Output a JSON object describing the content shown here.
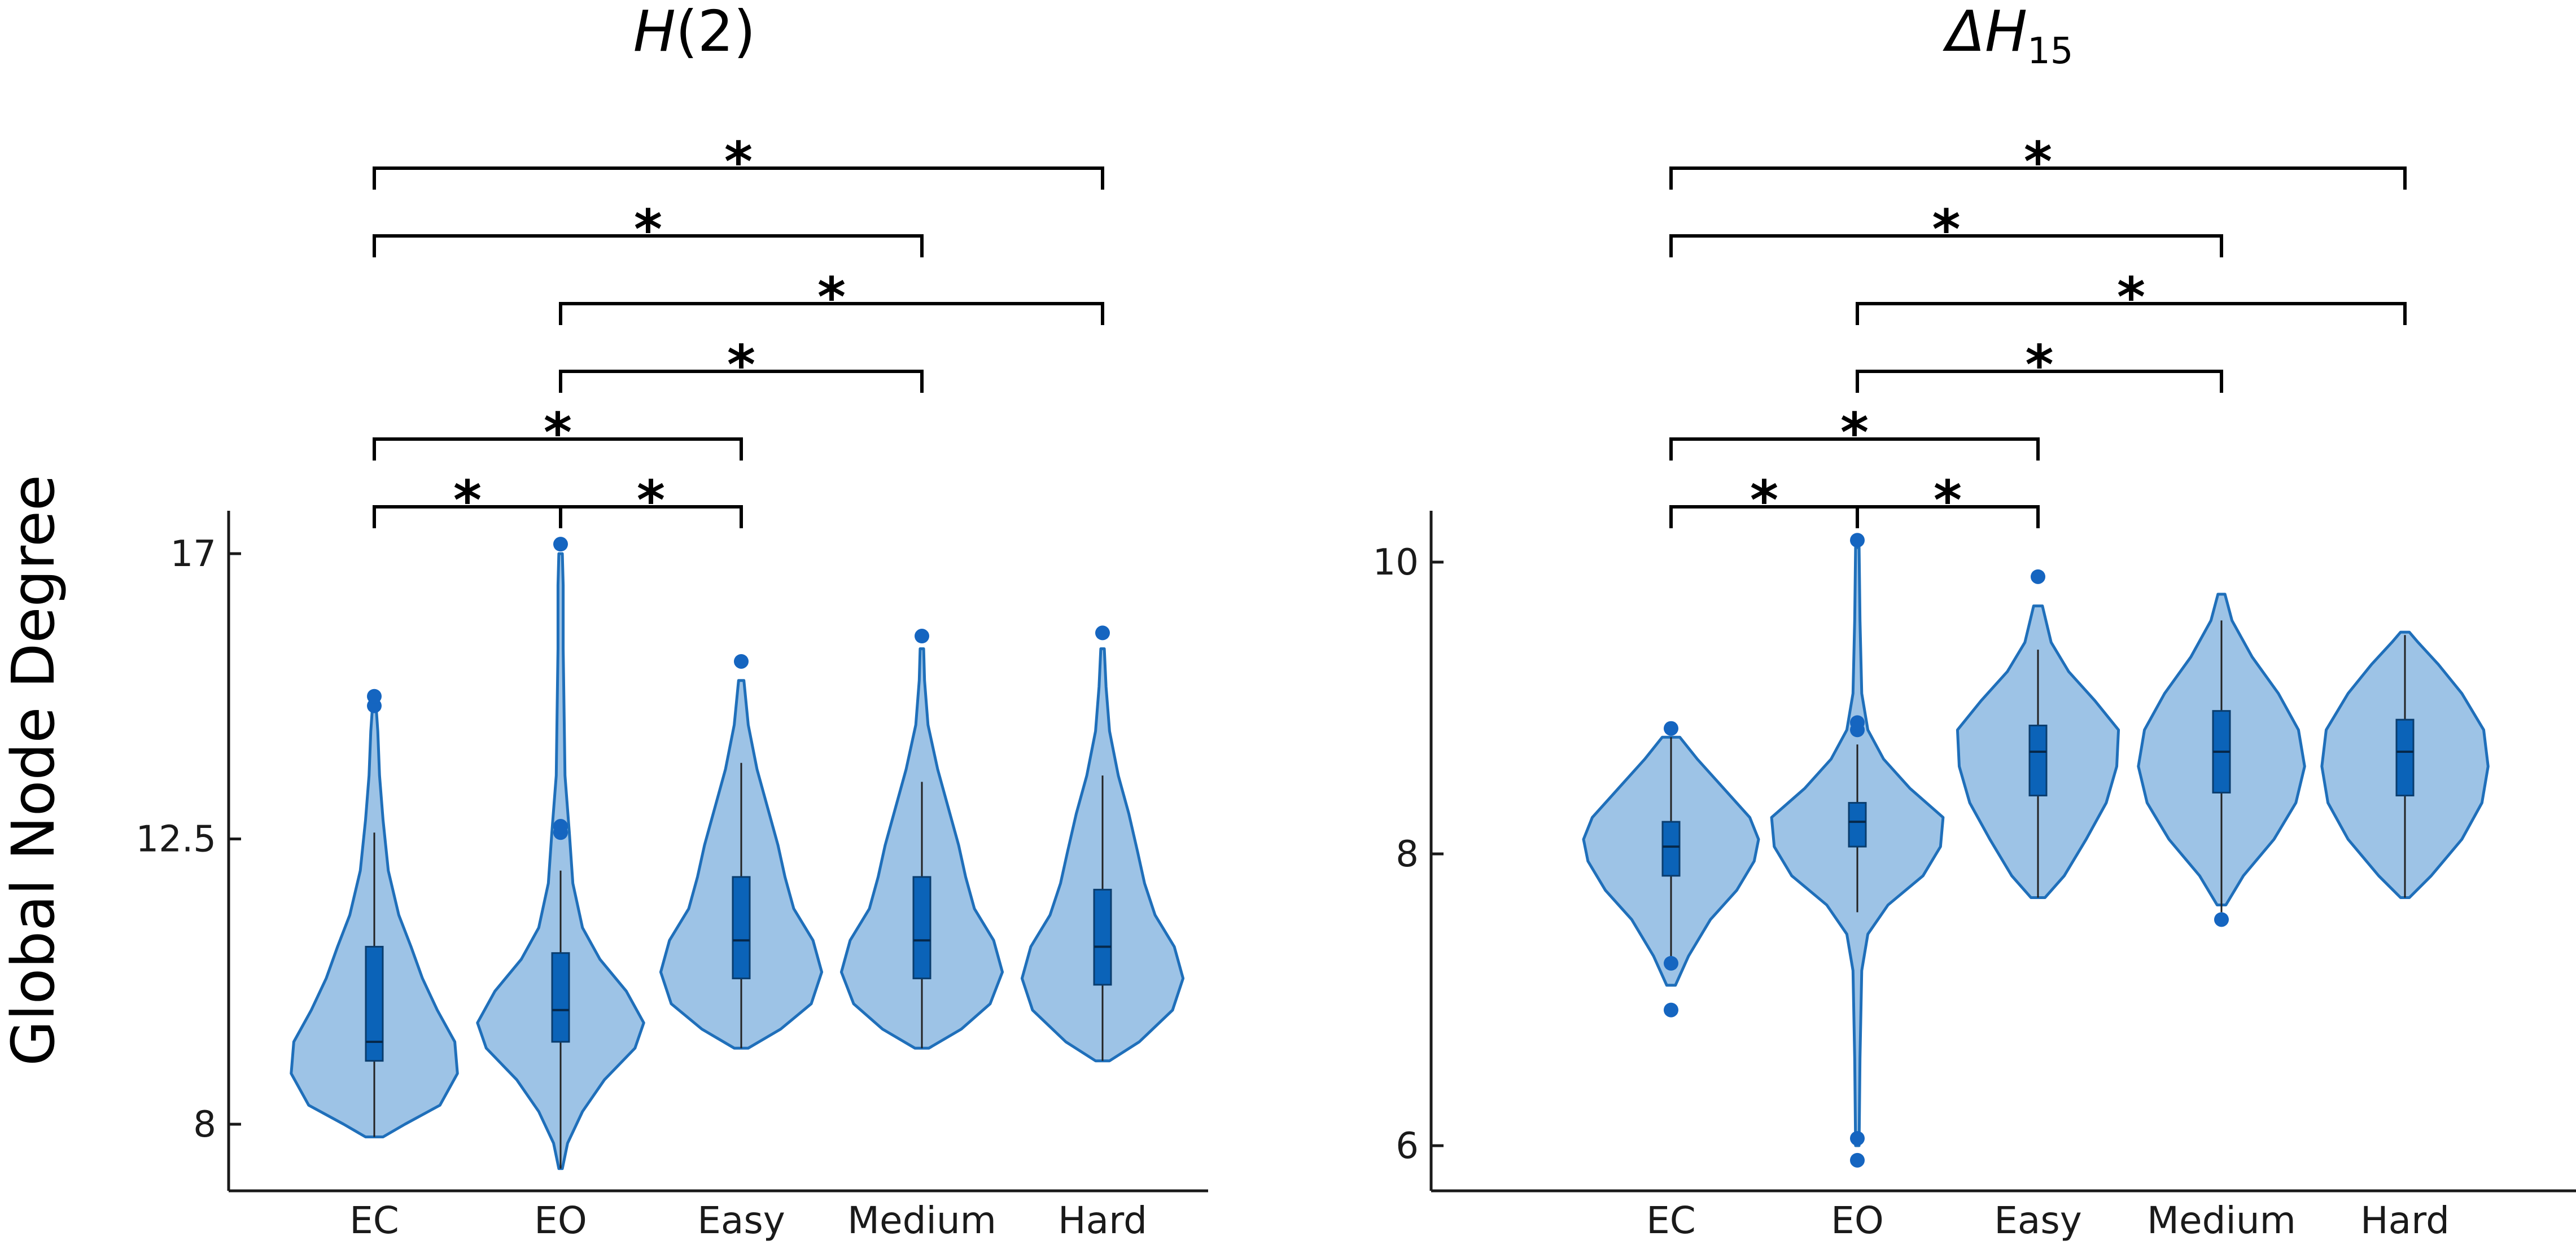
{
  "figure": {
    "ylabel": "Global Node Degree"
  },
  "colors": {
    "violin_fill": "#9dc3e6",
    "violin_edge": "#1f6fba",
    "box_fill": "#0b63b8",
    "outlier": "#1565c0",
    "axis": "#1a1a1a"
  },
  "chart_data": [
    {
      "type": "violin",
      "title": "H(2)",
      "title_main": "H",
      "title_suffix": "(2)",
      "ylabel": "Global Node Degree",
      "ylim": [
        7.0,
        17.6
      ],
      "yticks": [
        8,
        12.5,
        17
      ],
      "ytick_labels": [
        "8",
        "12.5",
        "17"
      ],
      "categories": [
        "EC",
        "EO",
        "Easy",
        "Medium",
        "Hard"
      ],
      "series": [
        {
          "name": "EC",
          "min": 7.8,
          "q1": 9.0,
          "median": 9.3,
          "q3": 10.8,
          "max": 14.8,
          "whisker_low": 7.8,
          "whisker_high": 12.6,
          "outliers": [
            14.6,
            14.75
          ],
          "kde": [
            [
              7.8,
              0.1
            ],
            [
              8.0,
              0.35
            ],
            [
              8.3,
              0.75
            ],
            [
              8.8,
              0.95
            ],
            [
              9.3,
              0.92
            ],
            [
              9.8,
              0.72
            ],
            [
              10.3,
              0.55
            ],
            [
              10.8,
              0.42
            ],
            [
              11.3,
              0.28
            ],
            [
              12.0,
              0.16
            ],
            [
              12.8,
              0.1
            ],
            [
              13.5,
              0.06
            ],
            [
              14.2,
              0.04
            ],
            [
              14.6,
              0.02
            ]
          ]
        },
        {
          "name": "EO",
          "min": 7.3,
          "q1": 9.3,
          "median": 9.8,
          "q3": 10.7,
          "max": 17.2,
          "whisker_low": 7.3,
          "whisker_high": 12.0,
          "outliers": [
            12.6,
            12.7,
            17.15
          ],
          "kde": [
            [
              7.3,
              0.02
            ],
            [
              7.7,
              0.08
            ],
            [
              8.2,
              0.25
            ],
            [
              8.7,
              0.5
            ],
            [
              9.2,
              0.85
            ],
            [
              9.6,
              0.95
            ],
            [
              10.1,
              0.75
            ],
            [
              10.6,
              0.45
            ],
            [
              11.1,
              0.25
            ],
            [
              11.8,
              0.14
            ],
            [
              12.6,
              0.1
            ],
            [
              13.5,
              0.05
            ],
            [
              14.5,
              0.04
            ],
            [
              15.5,
              0.03
            ],
            [
              16.5,
              0.03
            ],
            [
              17.0,
              0.02
            ]
          ]
        },
        {
          "name": "Easy",
          "min": 9.2,
          "q1": 10.3,
          "median": 10.9,
          "q3": 11.9,
          "max": 15.3,
          "whisker_low": 9.2,
          "whisker_high": 13.7,
          "outliers": [
            15.3
          ],
          "kde": [
            [
              9.2,
              0.08
            ],
            [
              9.5,
              0.45
            ],
            [
              9.9,
              0.8
            ],
            [
              10.4,
              0.92
            ],
            [
              10.9,
              0.82
            ],
            [
              11.4,
              0.6
            ],
            [
              11.9,
              0.5
            ],
            [
              12.4,
              0.42
            ],
            [
              13.0,
              0.3
            ],
            [
              13.6,
              0.18
            ],
            [
              14.3,
              0.08
            ],
            [
              15.0,
              0.03
            ]
          ]
        },
        {
          "name": "Medium",
          "min": 9.2,
          "q1": 10.3,
          "median": 10.9,
          "q3": 11.9,
          "max": 15.7,
          "whisker_low": 9.2,
          "whisker_high": 13.4,
          "outliers": [
            15.7
          ],
          "kde": [
            [
              9.2,
              0.08
            ],
            [
              9.5,
              0.45
            ],
            [
              9.9,
              0.78
            ],
            [
              10.4,
              0.92
            ],
            [
              10.9,
              0.82
            ],
            [
              11.4,
              0.6
            ],
            [
              11.9,
              0.5
            ],
            [
              12.4,
              0.42
            ],
            [
              13.0,
              0.3
            ],
            [
              13.6,
              0.18
            ],
            [
              14.3,
              0.07
            ],
            [
              15.0,
              0.03
            ],
            [
              15.5,
              0.02
            ]
          ]
        },
        {
          "name": "Hard",
          "min": 9.0,
          "q1": 10.2,
          "median": 10.8,
          "q3": 11.7,
          "max": 15.8,
          "whisker_low": 9.0,
          "whisker_high": 13.5,
          "outliers": [
            15.75
          ],
          "kde": [
            [
              9.0,
              0.08
            ],
            [
              9.3,
              0.42
            ],
            [
              9.8,
              0.8
            ],
            [
              10.3,
              0.92
            ],
            [
              10.8,
              0.82
            ],
            [
              11.3,
              0.6
            ],
            [
              11.8,
              0.48
            ],
            [
              12.3,
              0.4
            ],
            [
              12.9,
              0.3
            ],
            [
              13.5,
              0.18
            ],
            [
              14.2,
              0.08
            ],
            [
              14.9,
              0.04
            ],
            [
              15.5,
              0.02
            ]
          ]
        }
      ],
      "significance": [
        {
          "from": 0,
          "to": 1,
          "label": "*",
          "level": 0
        },
        {
          "from": 1,
          "to": 2,
          "label": "*",
          "level": 0
        },
        {
          "from": 0,
          "to": 2,
          "label": "*",
          "level": 1
        },
        {
          "from": 1,
          "to": 3,
          "label": "*",
          "level": 2
        },
        {
          "from": 1,
          "to": 4,
          "label": "*",
          "level": 3
        },
        {
          "from": 0,
          "to": 3,
          "label": "*",
          "level": 4
        },
        {
          "from": 0,
          "to": 4,
          "label": "*",
          "level": 5
        }
      ]
    },
    {
      "type": "violin",
      "title": "ΔH15",
      "title_main": "ΔH",
      "title_suffix": "15",
      "ylabel": "",
      "ylim": [
        5.75,
        10.3
      ],
      "yticks": [
        6,
        8,
        10
      ],
      "ytick_labels": [
        "6",
        "8",
        "10"
      ],
      "categories": [
        "EC",
        "EO",
        "Easy",
        "Medium",
        "Hard"
      ],
      "series": [
        {
          "name": "EC",
          "min": 6.9,
          "q1": 7.85,
          "median": 8.05,
          "q3": 8.22,
          "max": 8.85,
          "whisker_low": 7.3,
          "whisker_high": 8.8,
          "outliers": [
            7.25,
            6.93,
            8.86
          ],
          "kde": [
            [
              7.1,
              0.05
            ],
            [
              7.3,
              0.2
            ],
            [
              7.55,
              0.45
            ],
            [
              7.75,
              0.75
            ],
            [
              7.95,
              0.95
            ],
            [
              8.1,
              1.0
            ],
            [
              8.25,
              0.9
            ],
            [
              8.45,
              0.6
            ],
            [
              8.65,
              0.3
            ],
            [
              8.8,
              0.1
            ]
          ]
        },
        {
          "name": "EO",
          "min": 5.9,
          "q1": 8.05,
          "median": 8.22,
          "q3": 8.35,
          "max": 10.15,
          "whisker_low": 7.6,
          "whisker_high": 8.75,
          "outliers": [
            8.85,
            8.9,
            6.05,
            5.9,
            10.15
          ],
          "kde": [
            [
              6.0,
              0.02
            ],
            [
              6.6,
              0.03
            ],
            [
              7.2,
              0.05
            ],
            [
              7.45,
              0.12
            ],
            [
              7.65,
              0.35
            ],
            [
              7.85,
              0.75
            ],
            [
              8.05,
              0.95
            ],
            [
              8.25,
              0.98
            ],
            [
              8.45,
              0.6
            ],
            [
              8.65,
              0.3
            ],
            [
              8.85,
              0.12
            ],
            [
              9.1,
              0.05
            ],
            [
              9.6,
              0.03
            ],
            [
              10.1,
              0.02
            ]
          ]
        },
        {
          "name": "Easy",
          "min": 7.7,
          "q1": 8.4,
          "median": 8.7,
          "q3": 8.88,
          "max": 9.9,
          "whisker_low": 7.7,
          "whisker_high": 9.4,
          "outliers": [
            9.9
          ],
          "kde": [
            [
              7.7,
              0.08
            ],
            [
              7.85,
              0.3
            ],
            [
              8.1,
              0.55
            ],
            [
              8.35,
              0.78
            ],
            [
              8.6,
              0.9
            ],
            [
              8.85,
              0.92
            ],
            [
              9.05,
              0.65
            ],
            [
              9.25,
              0.35
            ],
            [
              9.45,
              0.15
            ],
            [
              9.7,
              0.05
            ]
          ]
        },
        {
          "name": "Medium",
          "min": 7.55,
          "q1": 8.42,
          "median": 8.7,
          "q3": 8.98,
          "max": 9.8,
          "whisker_low": 7.6,
          "whisker_high": 9.6,
          "outliers": [
            7.55
          ],
          "kde": [
            [
              7.65,
              0.05
            ],
            [
              7.85,
              0.25
            ],
            [
              8.1,
              0.6
            ],
            [
              8.35,
              0.85
            ],
            [
              8.6,
              0.95
            ],
            [
              8.85,
              0.88
            ],
            [
              9.1,
              0.65
            ],
            [
              9.35,
              0.35
            ],
            [
              9.6,
              0.12
            ],
            [
              9.78,
              0.04
            ]
          ]
        },
        {
          "name": "Hard",
          "min": 7.7,
          "q1": 8.4,
          "median": 8.7,
          "q3": 8.92,
          "max": 9.52,
          "whisker_low": 7.7,
          "whisker_high": 9.5,
          "outliers": [],
          "kde": [
            [
              7.7,
              0.05
            ],
            [
              7.85,
              0.3
            ],
            [
              8.1,
              0.65
            ],
            [
              8.35,
              0.88
            ],
            [
              8.6,
              0.95
            ],
            [
              8.85,
              0.9
            ],
            [
              9.1,
              0.65
            ],
            [
              9.3,
              0.38
            ],
            [
              9.45,
              0.15
            ],
            [
              9.52,
              0.05
            ]
          ]
        }
      ],
      "significance": [
        {
          "from": 0,
          "to": 1,
          "label": "*",
          "level": 0
        },
        {
          "from": 1,
          "to": 2,
          "label": "*",
          "level": 0
        },
        {
          "from": 0,
          "to": 2,
          "label": "*",
          "level": 1
        },
        {
          "from": 1,
          "to": 3,
          "label": "*",
          "level": 2
        },
        {
          "from": 1,
          "to": 4,
          "label": "*",
          "level": 3
        },
        {
          "from": 0,
          "to": 3,
          "label": "*",
          "level": 4
        },
        {
          "from": 0,
          "to": 4,
          "label": "*",
          "level": 5
        }
      ]
    }
  ]
}
